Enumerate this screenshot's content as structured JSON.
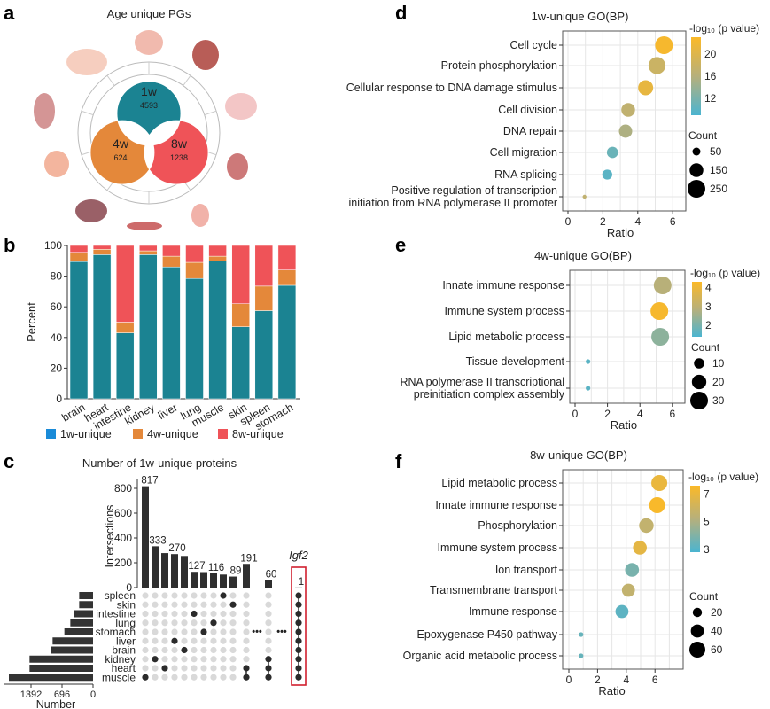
{
  "panel_labels": [
    "a",
    "b",
    "c",
    "d",
    "e",
    "f"
  ],
  "colors": {
    "w1": "#1b8392",
    "w4": "#e4883a",
    "w8": "#ef5358",
    "legend_1w": "#1a8bd8",
    "dot_on": "#2b2b2b",
    "dot_off": "#d9d9d9",
    "igf2": "#d0202f",
    "cmap_low": "#4bb4d0",
    "cmap_mid": "#b6b07c",
    "cmap_high": "#fbb928"
  },
  "panel_a": {
    "title": "Age unique PGs",
    "sets": [
      {
        "label": "1w",
        "value": "4593"
      },
      {
        "label": "4w",
        "value": "624"
      },
      {
        "label": "8w",
        "value": "1238"
      }
    ],
    "organ_icons": [
      "brain-icon",
      "heart-icon",
      "lung-icon",
      "kidney-icon",
      "spleen-icon",
      "muscle-icon",
      "liver-icon",
      "stomach-icon",
      "intestine-icon",
      "skin-icon"
    ]
  },
  "chart_data": [
    {
      "type": "bar",
      "stacked": true,
      "ylabel": "Percent",
      "ylim": [
        0,
        100
      ],
      "yticks": [
        "0",
        "20",
        "40",
        "60",
        "80",
        "100"
      ],
      "categories": [
        "brain",
        "heart",
        "intestine",
        "kidney",
        "liver",
        "lung",
        "muscle",
        "skin",
        "spleen",
        "stomach"
      ],
      "series": [
        {
          "name": "1w-unique",
          "values": [
            89.5,
            94,
            43,
            94,
            86,
            78.5,
            90,
            47,
            57.5,
            74
          ]
        },
        {
          "name": "4w-unique",
          "values": [
            6,
            3.5,
            7,
            2.5,
            7,
            10.5,
            3,
            15,
            16,
            10
          ]
        },
        {
          "name": "8w-unique",
          "values": [
            4.5,
            2.5,
            50,
            3.5,
            7,
            11,
            7,
            38,
            26.5,
            16
          ]
        }
      ],
      "legend": "bottom"
    },
    {
      "type": "upset",
      "title": "Number of 1w-unique proteins",
      "ylabel": "Intersections",
      "yticks": [
        "0",
        "200",
        "400",
        "600",
        "800"
      ],
      "set_size_label": "Number",
      "set_size_ticks": [
        "1392",
        "696",
        "0"
      ],
      "sets": [
        "spleen",
        "skin",
        "intestine",
        "lung",
        "stomach",
        "liver",
        "brain",
        "kidney",
        "heart",
        "muscle"
      ],
      "set_sizes": [
        311,
        311,
        431,
        510,
        643,
        908,
        948,
        1425,
        1425,
        1889
      ],
      "intersections": [
        {
          "sets": [
            "muscle"
          ],
          "value": 817,
          "label": "817"
        },
        {
          "sets": [
            "kidney"
          ],
          "value": 333,
          "label": "333"
        },
        {
          "sets": [
            "heart"
          ],
          "value": 278,
          "label": ""
        },
        {
          "sets": [
            "liver"
          ],
          "value": 270,
          "label": "270"
        },
        {
          "sets": [
            "brain"
          ],
          "value": 255,
          "label": ""
        },
        {
          "sets": [
            "intestine"
          ],
          "value": 127,
          "label": "127"
        },
        {
          "sets": [
            "stomach"
          ],
          "value": 125,
          "label": ""
        },
        {
          "sets": [
            "lung"
          ],
          "value": 116,
          "label": "116"
        },
        {
          "sets": [
            "spleen"
          ],
          "value": 105,
          "label": ""
        },
        {
          "sets": [
            "skin"
          ],
          "value": 89,
          "label": "89"
        },
        {
          "sets": [
            "heart",
            "muscle"
          ],
          "value": 191,
          "label": "191"
        },
        {
          "sets": [
            "kidney",
            "heart",
            "muscle"
          ],
          "value": 60,
          "label": "60"
        },
        {
          "sets": [
            "spleen",
            "skin",
            "intestine",
            "lung",
            "stomach",
            "liver",
            "brain",
            "kidney",
            "heart",
            "muscle"
          ],
          "value": 1,
          "label": "1"
        }
      ],
      "annotation": "Igf2"
    },
    {
      "type": "scatter",
      "title": "1w-unique GO(BP)",
      "xlabel": "Ratio",
      "xlim": [
        -0.3,
        6.9
      ],
      "xticks": [
        0,
        2,
        4,
        6
      ],
      "color_label": "-log₁₀ (p value)",
      "color_range": [
        9,
        23
      ],
      "color_ticks": [
        12,
        16,
        20
      ],
      "size_label": "Count",
      "size_ticks": [
        50,
        150,
        250
      ],
      "terms": [
        "Cell cycle",
        "Protein phosphorylation",
        "Cellular response to DNA damage stimulus",
        "Cell division",
        "DNA repair",
        "Cell migration",
        "RNA splicing",
        "Positive regulation of transcription\ninitiation from RNA polymerase II promoter"
      ],
      "ratio": [
        5.5,
        5.1,
        4.45,
        3.45,
        3.3,
        2.55,
        2.25,
        0.95
      ],
      "neglog10p": [
        22.5,
        18,
        21,
        17,
        15.5,
        11,
        10,
        17
      ],
      "count": [
        250,
        230,
        180,
        150,
        140,
        100,
        80,
        10
      ]
    },
    {
      "type": "scatter",
      "title": "4w-unique GO(BP)",
      "xlabel": "Ratio",
      "xlim": [
        -0.3,
        6.8
      ],
      "xticks": [
        0,
        2,
        4,
        6
      ],
      "color_label": "-log₁₀ (p value)",
      "color_range": [
        1.4,
        4.3
      ],
      "color_ticks": [
        2,
        3,
        4
      ],
      "size_label": "Count",
      "size_ticks": [
        10,
        20,
        30
      ],
      "terms": [
        "Innate immune response",
        "Immune system process",
        "Lipid metabolic process",
        "Tissue development",
        "RNA polymerase II transcriptional\npreinitiation complex assembly"
      ],
      "ratio": [
        5.4,
        5.2,
        5.25,
        0.8,
        0.8
      ],
      "neglog10p": [
        2.9,
        4.2,
        2.3,
        1.6,
        1.6
      ],
      "count": [
        30,
        30,
        30,
        2,
        2
      ]
    },
    {
      "type": "scatter",
      "title": "8w-unique GO(BP)",
      "xlabel": "Ratio",
      "xlim": [
        -0.4,
        8
      ],
      "xticks": [
        0,
        2,
        4,
        6
      ],
      "color_label": "-log₁₀ (p value)",
      "color_range": [
        2.8,
        7.6
      ],
      "color_ticks": [
        3,
        5,
        7
      ],
      "size_label": "Count",
      "size_ticks": [
        20,
        40,
        60
      ],
      "terms": [
        "Lipid metabolic process",
        "Innate immune response",
        "Phosphorylation",
        "Immune system process",
        "Ion transport",
        "Transmembrane transport",
        "Immune response",
        "Epoxygenase P450 pathway",
        "Organic acid metabolic process"
      ],
      "ratio": [
        6.3,
        6.15,
        5.4,
        4.95,
        4.4,
        4.15,
        3.7,
        0.85,
        0.85
      ],
      "neglog10p": [
        7,
        7.5,
        5.6,
        6.8,
        3.8,
        5.6,
        3.2,
        3.4,
        3.4
      ],
      "count": [
        60,
        60,
        50,
        45,
        45,
        40,
        40,
        5,
        5
      ]
    }
  ]
}
